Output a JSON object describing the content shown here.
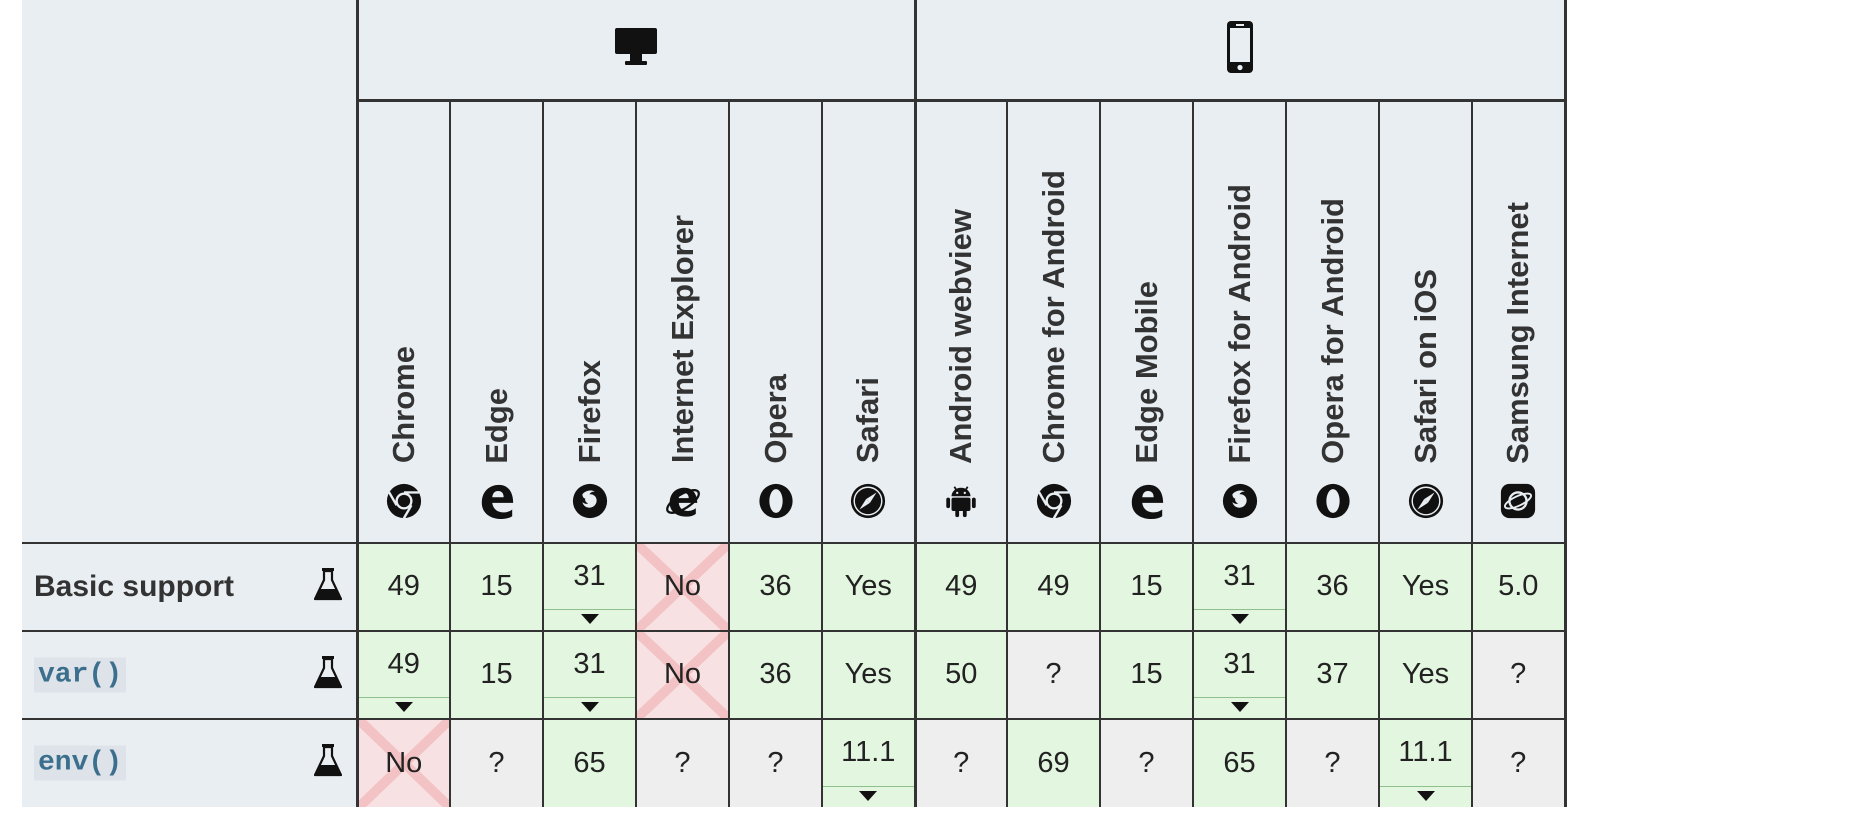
{
  "platforms": [
    {
      "icon": "desktop-icon",
      "span": 6
    },
    {
      "icon": "mobile-phone-icon",
      "span": 7
    }
  ],
  "browsers": [
    {
      "name": "Chrome",
      "icon": "chrome-icon"
    },
    {
      "name": "Edge",
      "icon": "edge-icon"
    },
    {
      "name": "Firefox",
      "icon": "firefox-icon"
    },
    {
      "name": "Internet Explorer",
      "icon": "internet-explorer-icon"
    },
    {
      "name": "Opera",
      "icon": "opera-icon"
    },
    {
      "name": "Safari",
      "icon": "safari-icon"
    },
    {
      "name": "Android webview",
      "icon": "android-icon"
    },
    {
      "name": "Chrome for Android",
      "icon": "chrome-icon"
    },
    {
      "name": "Edge Mobile",
      "icon": "edge-icon"
    },
    {
      "name": "Firefox for Android",
      "icon": "firefox-icon"
    },
    {
      "name": "Opera for Android",
      "icon": "opera-icon"
    },
    {
      "name": "Safari on iOS",
      "icon": "safari-icon"
    },
    {
      "name": "Samsung Internet",
      "icon": "samsung-internet-icon"
    }
  ],
  "features": [
    {
      "name": "Basic support",
      "code": false,
      "experimental_icon": "flask-icon",
      "cells": [
        {
          "value": "49",
          "status": "yes",
          "note": false
        },
        {
          "value": "15",
          "status": "yes",
          "note": false
        },
        {
          "value": "31",
          "status": "yes",
          "note": true
        },
        {
          "value": "No",
          "status": "no",
          "note": false
        },
        {
          "value": "36",
          "status": "yes",
          "note": false
        },
        {
          "value": "Yes",
          "status": "yes",
          "note": false
        },
        {
          "value": "49",
          "status": "yes",
          "note": false
        },
        {
          "value": "49",
          "status": "yes",
          "note": false
        },
        {
          "value": "15",
          "status": "yes",
          "note": false
        },
        {
          "value": "31",
          "status": "yes",
          "note": true
        },
        {
          "value": "36",
          "status": "yes",
          "note": false
        },
        {
          "value": "Yes",
          "status": "yes",
          "note": false
        },
        {
          "value": "5.0",
          "status": "yes",
          "note": false
        }
      ]
    },
    {
      "name": "var()",
      "code": true,
      "experimental_icon": "flask-icon",
      "cells": [
        {
          "value": "49",
          "status": "yes",
          "note": true
        },
        {
          "value": "15",
          "status": "yes",
          "note": false
        },
        {
          "value": "31",
          "status": "yes",
          "note": true
        },
        {
          "value": "No",
          "status": "no",
          "note": false
        },
        {
          "value": "36",
          "status": "yes",
          "note": false
        },
        {
          "value": "Yes",
          "status": "yes",
          "note": false
        },
        {
          "value": "50",
          "status": "yes",
          "note": false
        },
        {
          "value": "?",
          "status": "unknown",
          "note": false
        },
        {
          "value": "15",
          "status": "yes",
          "note": false
        },
        {
          "value": "31",
          "status": "yes",
          "note": true
        },
        {
          "value": "37",
          "status": "yes",
          "note": false
        },
        {
          "value": "Yes",
          "status": "yes",
          "note": false
        },
        {
          "value": "?",
          "status": "unknown",
          "note": false
        }
      ]
    },
    {
      "name": "env()",
      "code": true,
      "experimental_icon": "flask-icon",
      "cells": [
        {
          "value": "No",
          "status": "no",
          "note": false
        },
        {
          "value": "?",
          "status": "unknown",
          "note": false
        },
        {
          "value": "65",
          "status": "yes",
          "note": false
        },
        {
          "value": "?",
          "status": "unknown",
          "note": false
        },
        {
          "value": "?",
          "status": "unknown",
          "note": false
        },
        {
          "value": "11.1",
          "status": "yes",
          "note": true
        },
        {
          "value": "?",
          "status": "unknown",
          "note": false
        },
        {
          "value": "69",
          "status": "yes",
          "note": false
        },
        {
          "value": "?",
          "status": "unknown",
          "note": false
        },
        {
          "value": "65",
          "status": "yes",
          "note": false
        },
        {
          "value": "?",
          "status": "unknown",
          "note": false
        },
        {
          "value": "11.1",
          "status": "yes",
          "note": true
        },
        {
          "value": "?",
          "status": "unknown",
          "note": false
        }
      ]
    }
  ],
  "colors": {
    "header_bg": "#e9eef2",
    "yes_bg": "#e3f6df",
    "no_bg": "#f8e1e2",
    "no_cross": "#f0b7ba",
    "unknown_bg": "#eeeeee",
    "code_text": "#3b6f8d"
  }
}
